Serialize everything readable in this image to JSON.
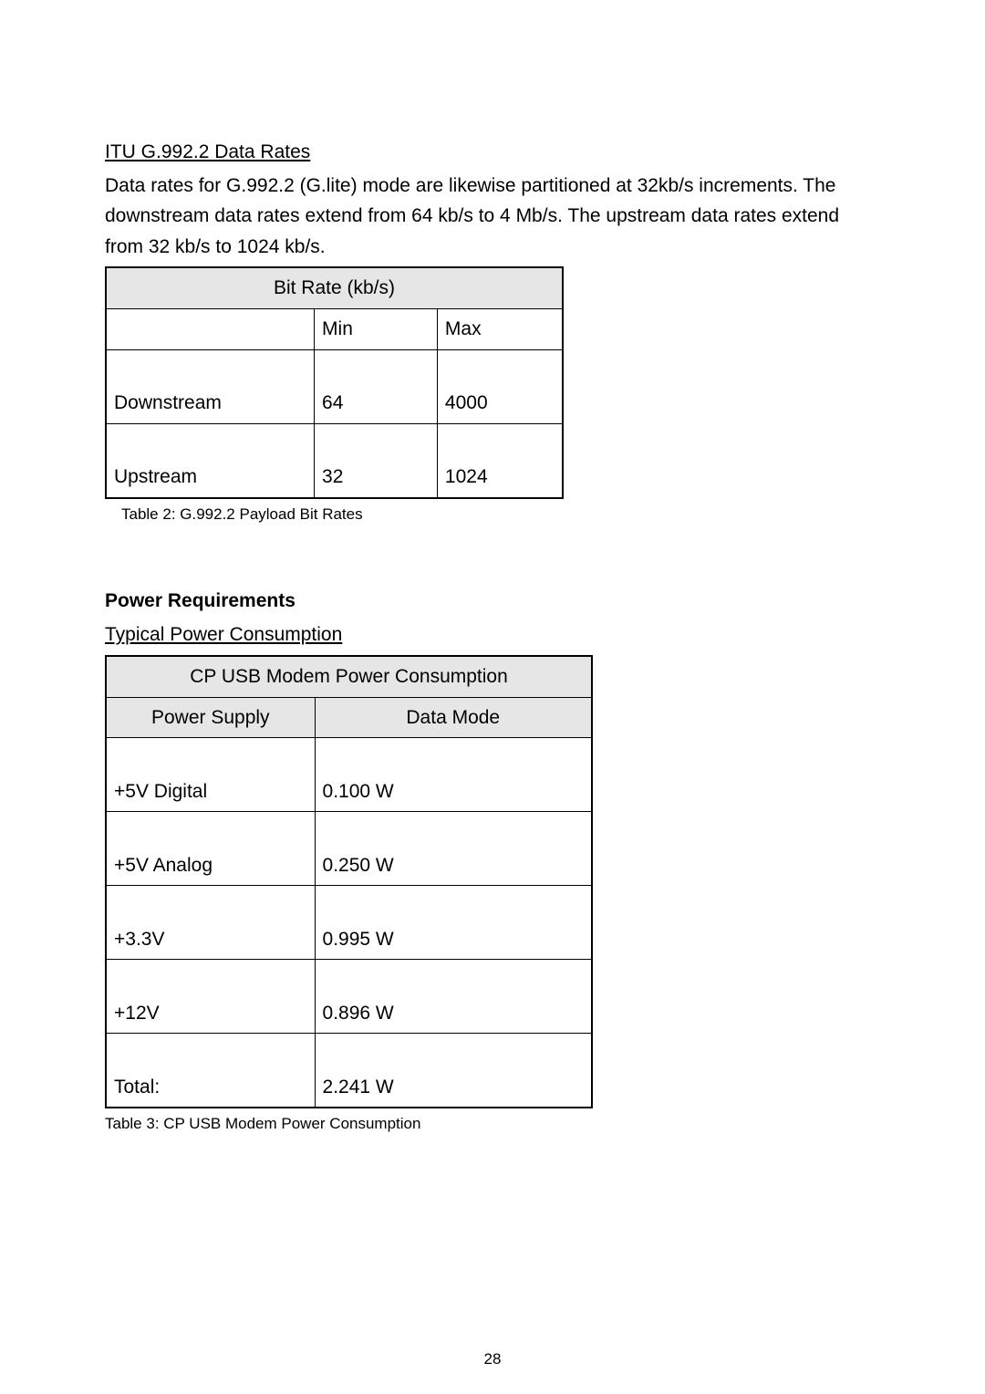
{
  "section1": {
    "title": "ITU G.992.2 Data Rates",
    "body": "Data rates for G.992.2 (G.lite) mode are likewise partitioned at 32kb/s increments.  The downstream data rates extend from 64 kb/s to 4 Mb/s.  The upstream data rates extend from 32 kb/s to 1024 kb/s.",
    "table": {
      "header_span": "Bit Rate (kb/s)",
      "columns": [
        "",
        "Min",
        "Max"
      ],
      "rows": [
        [
          "Downstream",
          "64",
          "4000"
        ],
        [
          "Upstream",
          "32",
          "1024"
        ]
      ],
      "caption": "Table 2: G.992.2 Payload Bit Rates"
    }
  },
  "section2": {
    "heading": "Power Requirements",
    "subheading": "Typical Power Consumption",
    "table": {
      "header_span": "CP USB Modem Power Consumption",
      "columns": [
        "Power Supply",
        "Data Mode"
      ],
      "rows": [
        [
          "+5V Digital",
          "0.100 W"
        ],
        [
          "+5V Analog",
          "0.250 W"
        ],
        [
          "+3.3V",
          "0.995 W"
        ],
        [
          "+12V",
          "0.896 W"
        ],
        [
          "Total:",
          "2.241 W"
        ]
      ],
      "caption": "Table 3: CP USB Modem Power Consumption"
    }
  },
  "page_number": "28",
  "styling": {
    "background_color": "#ffffff",
    "text_color": "#000000",
    "table_header_bg": "#e6e6e6",
    "table_border": "#000000",
    "body_fontsize": 21,
    "caption_fontsize": 17
  }
}
